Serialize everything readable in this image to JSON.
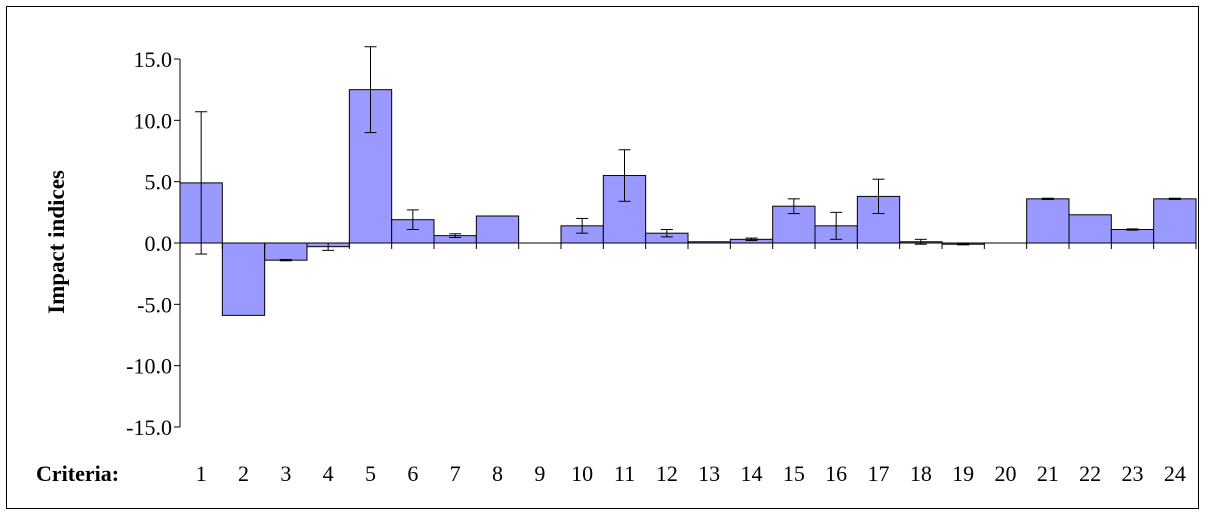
{
  "chart_data": {
    "type": "bar",
    "ylabel": "Impact indices",
    "xlabel": "Criteria:",
    "ylim": [
      -15,
      15
    ],
    "yticks": [
      15,
      10,
      5,
      0,
      -5,
      -10,
      -15
    ],
    "ytick_labels": [
      "15.0",
      "10.0",
      "5.0",
      "0.0",
      "-5.0",
      "-10.0",
      "-15.0"
    ],
    "categories": [
      "1",
      "2",
      "3",
      "4",
      "5",
      "6",
      "7",
      "8",
      "9",
      "10",
      "11",
      "12",
      "13",
      "14",
      "15",
      "16",
      "17",
      "18",
      "19",
      "20",
      "21",
      "22",
      "23",
      "24"
    ],
    "values": [
      4.9,
      -5.9,
      -1.4,
      -0.3,
      12.5,
      1.9,
      0.6,
      2.2,
      0.0,
      1.4,
      5.5,
      0.8,
      0.1,
      0.3,
      3.0,
      1.4,
      3.8,
      0.1,
      -0.1,
      0.0,
      3.6,
      2.3,
      1.1,
      3.6
    ],
    "errors": [
      5.8,
      0.0,
      0.05,
      0.3,
      3.5,
      0.8,
      0.15,
      0.0,
      0.0,
      0.6,
      2.1,
      0.3,
      0.0,
      0.1,
      0.6,
      1.1,
      1.4,
      0.2,
      0.05,
      0.0,
      0.05,
      0.0,
      0.05,
      0.05
    ],
    "bar_color": "#9999ff",
    "grid": false,
    "legend": "none"
  }
}
